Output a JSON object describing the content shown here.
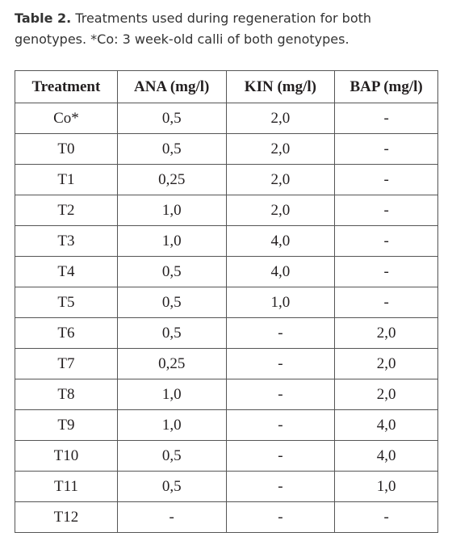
{
  "caption": {
    "label": "Table 2.",
    "text": "Treatments used during regeneration for both genotypes. *Co: 3 week-old calli of both genotypes."
  },
  "table": {
    "header": [
      "Treatment",
      "ANA (mg/l)",
      "KIN (mg/l)",
      "BAP (mg/l)"
    ],
    "rows": [
      [
        "Co*",
        "0,5",
        "2,0",
        "-"
      ],
      [
        "T0",
        "0,5",
        "2,0",
        "-"
      ],
      [
        "T1",
        "0,25",
        "2,0",
        "-"
      ],
      [
        "T2",
        "1,0",
        "2,0",
        "-"
      ],
      [
        "T3",
        "1,0",
        "4,0",
        "-"
      ],
      [
        "T4",
        "0,5",
        "4,0",
        "-"
      ],
      [
        "T5",
        "0,5",
        "1,0",
        "-"
      ],
      [
        "T6",
        "0,5",
        "-",
        "2,0"
      ],
      [
        "T7",
        "0,25",
        "-",
        "2,0"
      ],
      [
        "T8",
        "1,0",
        "-",
        "2,0"
      ],
      [
        "T9",
        "1,0",
        "-",
        "4,0"
      ],
      [
        "T10",
        "0,5",
        "-",
        "4,0"
      ],
      [
        "T11",
        "0,5",
        "-",
        "1,0"
      ],
      [
        "T12",
        "-",
        "-",
        "-"
      ]
    ]
  }
}
